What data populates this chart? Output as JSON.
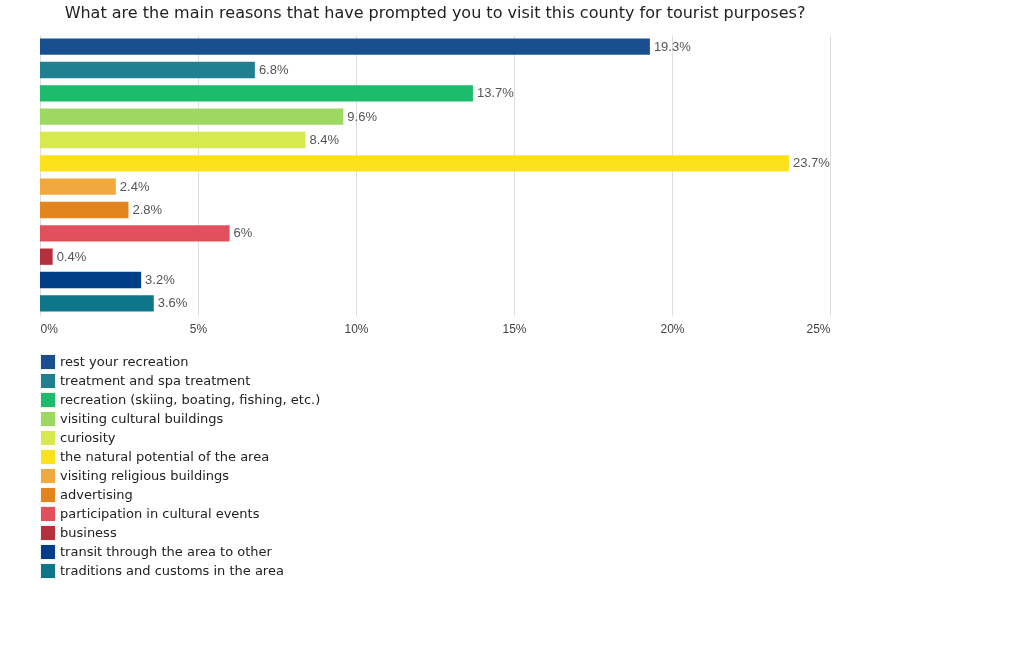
{
  "chart_data": {
    "type": "bar",
    "orientation": "horizontal",
    "title": "What are the main reasons that have prompted you to visit this county for tourist purposes?",
    "categories": [
      null,
      null,
      null,
      null,
      null,
      null,
      null,
      null,
      null,
      null,
      null,
      null
    ],
    "series": [
      {
        "name": "rest your recreation",
        "color": "#1a4f8f",
        "values": [
          19.3,
          null,
          null,
          null,
          null,
          null,
          null,
          null,
          null,
          null,
          null,
          null
        ],
        "value_labels": [
          "19.3%",
          null,
          null,
          null,
          null,
          null,
          null,
          null,
          null,
          null,
          null,
          null
        ]
      },
      {
        "name": "treatment and spa treatment",
        "color": "#21808f",
        "values": [
          null,
          6.8,
          null,
          null,
          null,
          null,
          null,
          null,
          null,
          null,
          null,
          null
        ],
        "value_labels": [
          null,
          "6.8%",
          null,
          null,
          null,
          null,
          null,
          null,
          null,
          null,
          null,
          null
        ]
      },
      {
        "name": "recreation (skiing, boating, fishing, etc.)",
        "color": "#1dbb6c",
        "values": [
          null,
          null,
          13.7,
          null,
          null,
          null,
          null,
          null,
          null,
          null,
          null,
          null
        ],
        "value_labels": [
          null,
          null,
          "13.7%",
          null,
          null,
          null,
          null,
          null,
          null,
          null,
          null,
          null
        ]
      },
      {
        "name": "visiting cultural buildings",
        "color": "#9dd862",
        "values": [
          null,
          null,
          null,
          9.6,
          null,
          null,
          null,
          null,
          null,
          null,
          null,
          null
        ],
        "value_labels": [
          null,
          null,
          null,
          "9.6%",
          null,
          null,
          null,
          null,
          null,
          null,
          null,
          null
        ]
      },
      {
        "name": "curiosity",
        "color": "#d8e84f",
        "values": [
          null,
          null,
          null,
          null,
          8.4,
          null,
          null,
          null,
          null,
          null,
          null,
          null
        ],
        "value_labels": [
          null,
          null,
          null,
          null,
          "8.4%",
          null,
          null,
          null,
          null,
          null,
          null,
          null
        ]
      },
      {
        "name": "the natural potential of the area",
        "color": "#fde11a",
        "values": [
          null,
          null,
          null,
          null,
          null,
          23.7,
          null,
          null,
          null,
          null,
          null,
          null
        ],
        "value_labels": [
          null,
          null,
          null,
          null,
          null,
          "23.7%",
          null,
          null,
          null,
          null,
          null,
          null
        ]
      },
      {
        "name": "visiting religious buildings",
        "color": "#f0a93e",
        "values": [
          null,
          null,
          null,
          null,
          null,
          null,
          2.4,
          null,
          null,
          null,
          null,
          null
        ],
        "value_labels": [
          null,
          null,
          null,
          null,
          null,
          null,
          "2.4%",
          null,
          null,
          null,
          null,
          null
        ]
      },
      {
        "name": "advertising",
        "color": "#e4841f",
        "values": [
          null,
          null,
          null,
          null,
          null,
          null,
          null,
          2.8,
          null,
          null,
          null,
          null
        ],
        "value_labels": [
          null,
          null,
          null,
          null,
          null,
          null,
          null,
          "2.8%",
          null,
          null,
          null,
          null
        ]
      },
      {
        "name": "participation in cultural events",
        "color": "#e2505e",
        "values": [
          null,
          null,
          null,
          null,
          null,
          null,
          null,
          null,
          6,
          null,
          null,
          null
        ],
        "value_labels": [
          null,
          null,
          null,
          null,
          null,
          null,
          null,
          null,
          "6%",
          null,
          null,
          null
        ]
      },
      {
        "name": "business",
        "color": "#b52f3c",
        "values": [
          null,
          null,
          null,
          null,
          null,
          null,
          null,
          null,
          null,
          0.4,
          null,
          null
        ],
        "value_labels": [
          null,
          null,
          null,
          null,
          null,
          null,
          null,
          null,
          null,
          "0.4%",
          null,
          null
        ]
      },
      {
        "name": "transit through the area to other",
        "color": "#003f88",
        "values": [
          null,
          null,
          null,
          null,
          null,
          null,
          null,
          null,
          null,
          null,
          3.2,
          null
        ],
        "value_labels": [
          null,
          null,
          null,
          null,
          null,
          null,
          null,
          null,
          null,
          null,
          "3.2%",
          null
        ]
      },
      {
        "name": "traditions and customs in the area",
        "color": "#0f7589",
        "values": [
          null,
          null,
          null,
          null,
          null,
          null,
          null,
          null,
          null,
          null,
          null,
          3.6
        ],
        "value_labels": [
          null,
          null,
          null,
          null,
          null,
          null,
          null,
          null,
          null,
          null,
          null,
          "3.6%"
        ]
      }
    ],
    "xlim": [
      0,
      25
    ],
    "xticks": [
      {
        "value": 0,
        "label": "0%"
      },
      {
        "value": 5,
        "label": "5%"
      },
      {
        "value": 10,
        "label": "10%"
      },
      {
        "value": 15,
        "label": "15%"
      },
      {
        "value": 20,
        "label": "20%"
      },
      {
        "value": 25,
        "label": "25%"
      }
    ],
    "grid": "x",
    "legend": "bottom left",
    "tick_labels": "x"
  }
}
